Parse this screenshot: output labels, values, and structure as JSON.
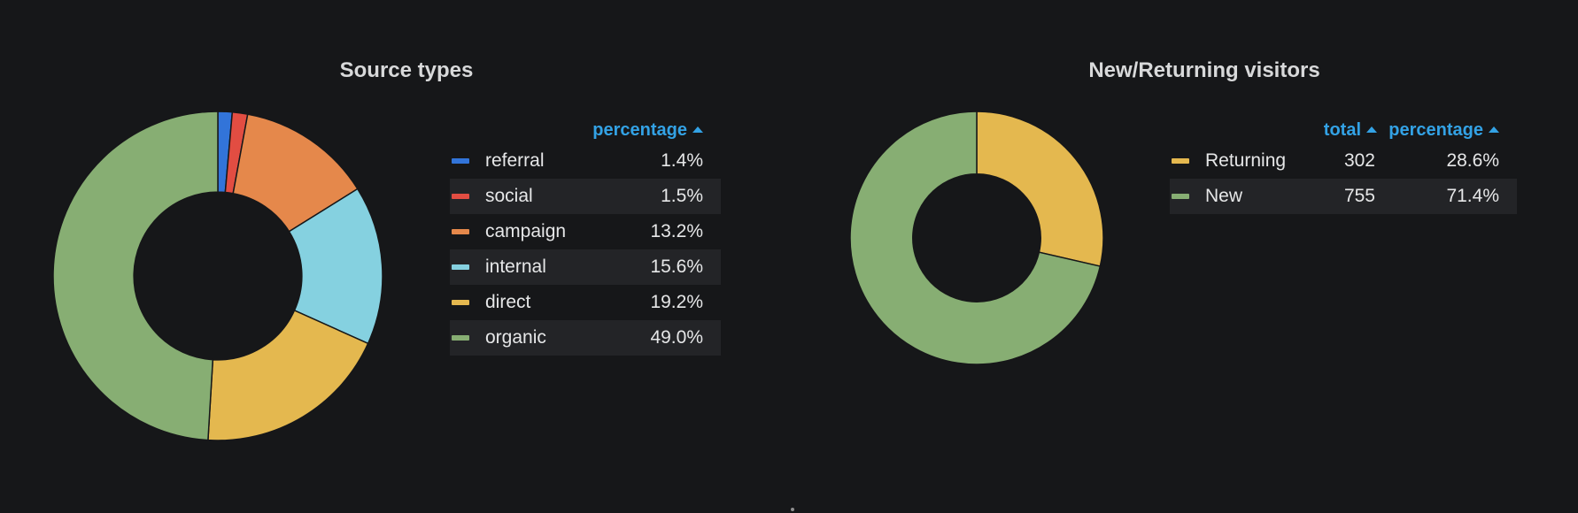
{
  "chart_data": [
    {
      "type": "pie",
      "variant": "donut",
      "title": "Source types",
      "legend_header": "percentage",
      "slices": [
        {
          "label": "referral",
          "value": 1.4,
          "display": "1.4%",
          "color": "#3274d9"
        },
        {
          "label": "social",
          "value": 1.5,
          "display": "1.5%",
          "color": "#e24d42"
        },
        {
          "label": "campaign",
          "value": 13.2,
          "display": "13.2%",
          "color": "#e5884b"
        },
        {
          "label": "internal",
          "value": 15.6,
          "display": "15.6%",
          "color": "#85d1e0"
        },
        {
          "label": "direct",
          "value": 19.2,
          "display": "19.2%",
          "color": "#e4b84f"
        },
        {
          "label": "organic",
          "value": 49.0,
          "display": "49.0%",
          "color": "#87ae73"
        }
      ]
    },
    {
      "type": "pie",
      "variant": "donut",
      "title": "New/Returning visitors",
      "legend_headers": {
        "total": "total",
        "percentage": "percentage"
      },
      "slices": [
        {
          "label": "Returning",
          "total": 302,
          "total_display": "302",
          "value": 28.6,
          "display": "28.6%",
          "color": "#e4b84f"
        },
        {
          "label": "New",
          "total": 755,
          "total_display": "755",
          "value": 71.4,
          "display": "71.4%",
          "color": "#87ae73"
        }
      ]
    }
  ]
}
